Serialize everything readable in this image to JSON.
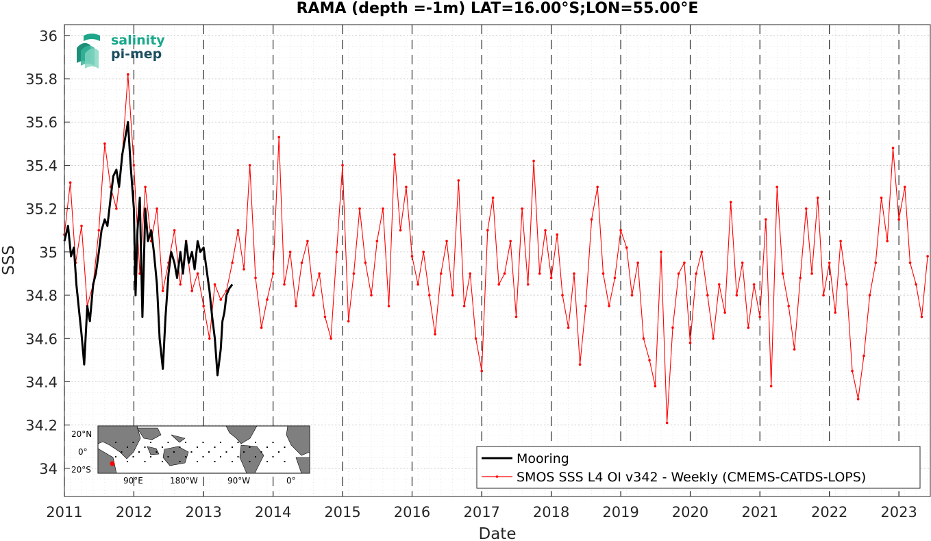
{
  "chart_data": {
    "type": "line",
    "title": "RAMA (depth =-1m) LAT=16.00°S;LON=55.00°E",
    "xlabel": "Date",
    "ylabel": "SSS",
    "xlim": [
      "2011-01-01",
      "2023-06-15"
    ],
    "ylim": [
      33.87,
      36.05
    ],
    "x_ticks": [
      "2011",
      "2012",
      "2013",
      "2014",
      "2015",
      "2016",
      "2017",
      "2018",
      "2019",
      "2020",
      "2021",
      "2022",
      "2023"
    ],
    "y_ticks": [
      "34",
      "34.2",
      "34.4",
      "34.6",
      "34.8",
      "35",
      "35.2",
      "35.4",
      "35.6",
      "35.8",
      "36"
    ],
    "grid": true,
    "year_boundaries_dashed": true,
    "legend_position": "bottom-right",
    "series": [
      {
        "name": "Mooring",
        "color": "#000000",
        "style": "thick-line",
        "x": [
          "2011-01-01",
          "2011-01-20",
          "2011-02-05",
          "2011-02-20",
          "2011-03-05",
          "2011-03-20",
          "2011-04-01",
          "2011-04-15",
          "2011-05-01",
          "2011-05-15",
          "2011-06-01",
          "2011-06-15",
          "2011-07-01",
          "2011-07-15",
          "2011-08-01",
          "2011-08-15",
          "2011-09-01",
          "2011-09-15",
          "2011-10-01",
          "2011-10-15",
          "2011-11-01",
          "2011-11-15",
          "2011-12-01",
          "2011-12-15",
          "2012-01-01",
          "2012-01-10",
          "2012-01-20",
          "2012-02-01",
          "2012-02-15",
          "2012-03-01",
          "2012-03-15",
          "2012-04-01",
          "2012-04-15",
          "2012-05-01",
          "2012-05-15",
          "2012-06-01",
          "2012-06-15",
          "2012-07-01",
          "2012-07-15",
          "2012-08-01",
          "2012-08-15",
          "2012-09-01",
          "2012-09-15",
          "2012-10-01",
          "2012-10-15",
          "2012-11-01",
          "2012-11-15",
          "2012-12-01",
          "2012-12-15",
          "2013-01-01",
          "2013-02-01",
          "2013-02-15",
          "2013-03-01",
          "2013-03-15",
          "2013-04-01",
          "2013-04-10",
          "2013-04-20",
          "2013-05-01",
          "2013-05-15",
          "2013-06-01"
        ],
        "y": [
          35.05,
          35.12,
          34.98,
          35.02,
          34.85,
          34.72,
          34.62,
          34.48,
          34.75,
          34.68,
          34.85,
          34.9,
          35.0,
          35.1,
          35.15,
          35.12,
          35.25,
          35.35,
          35.38,
          35.3,
          35.45,
          35.52,
          35.6,
          35.4,
          35.2,
          34.8,
          35.1,
          35.25,
          34.7,
          35.2,
          35.05,
          35.1,
          35.0,
          34.85,
          34.6,
          34.46,
          34.7,
          34.9,
          35.0,
          34.95,
          34.88,
          35.0,
          34.9,
          35.05,
          34.95,
          35.0,
          34.92,
          35.05,
          35.0,
          35.02,
          34.82,
          34.7,
          34.6,
          34.43,
          34.55,
          34.68,
          34.72,
          34.8,
          34.83,
          34.85
        ]
      },
      {
        "name": "SMOS SSS L4 OI v342 - Weekly (CMEMS-CATDS-LOPS)",
        "color": "#ff0000",
        "style": "line-with-dots",
        "x": [
          "2011-01-01",
          "2011-02-01",
          "2011-03-01",
          "2011-04-01",
          "2011-05-01",
          "2011-06-01",
          "2011-07-01",
          "2011-08-01",
          "2011-09-01",
          "2011-10-01",
          "2011-11-01",
          "2011-12-01",
          "2012-01-01",
          "2012-02-01",
          "2012-03-01",
          "2012-04-01",
          "2012-05-01",
          "2012-06-01",
          "2012-07-01",
          "2012-08-01",
          "2012-09-01",
          "2012-10-01",
          "2012-11-01",
          "2012-12-01",
          "2013-01-01",
          "2013-02-01",
          "2013-03-01",
          "2013-04-01",
          "2013-05-01",
          "2013-06-01",
          "2013-07-01",
          "2013-08-01",
          "2013-09-01",
          "2013-10-01",
          "2013-11-01",
          "2013-12-01",
          "2014-01-01",
          "2014-02-01",
          "2014-03-01",
          "2014-04-01",
          "2014-05-01",
          "2014-06-01",
          "2014-07-01",
          "2014-08-01",
          "2014-09-01",
          "2014-10-01",
          "2014-11-01",
          "2014-12-01",
          "2015-01-01",
          "2015-02-01",
          "2015-03-01",
          "2015-04-01",
          "2015-05-01",
          "2015-06-01",
          "2015-07-01",
          "2015-08-01",
          "2015-09-01",
          "2015-10-01",
          "2015-11-01",
          "2015-12-01",
          "2016-01-01",
          "2016-02-01",
          "2016-03-01",
          "2016-04-01",
          "2016-05-01",
          "2016-06-01",
          "2016-07-01",
          "2016-08-01",
          "2016-09-01",
          "2016-10-01",
          "2016-11-01",
          "2016-12-01",
          "2017-01-01",
          "2017-02-01",
          "2017-03-01",
          "2017-04-01",
          "2017-05-01",
          "2017-06-01",
          "2017-07-01",
          "2017-08-01",
          "2017-09-01",
          "2017-10-01",
          "2017-11-01",
          "2017-12-01",
          "2018-01-01",
          "2018-02-01",
          "2018-03-01",
          "2018-04-01",
          "2018-05-01",
          "2018-06-01",
          "2018-07-01",
          "2018-08-01",
          "2018-09-01",
          "2018-10-01",
          "2018-11-01",
          "2018-12-01",
          "2019-01-01",
          "2019-02-01",
          "2019-03-01",
          "2019-04-01",
          "2019-05-01",
          "2019-06-01",
          "2019-07-01",
          "2019-08-01",
          "2019-09-01",
          "2019-10-01",
          "2019-11-01",
          "2019-12-01",
          "2020-01-01",
          "2020-02-01",
          "2020-03-01",
          "2020-04-01",
          "2020-05-01",
          "2020-06-01",
          "2020-07-01",
          "2020-08-01",
          "2020-09-01",
          "2020-10-01",
          "2020-11-01",
          "2020-12-01",
          "2021-01-01",
          "2021-02-01",
          "2021-03-01",
          "2021-04-01",
          "2021-05-01",
          "2021-06-01",
          "2021-07-01",
          "2021-08-01",
          "2021-09-01",
          "2021-10-01",
          "2021-11-01",
          "2021-12-01",
          "2022-01-01",
          "2022-02-01",
          "2022-03-01",
          "2022-04-01",
          "2022-05-01",
          "2022-06-01",
          "2022-07-01",
          "2022-08-01",
          "2022-09-01",
          "2022-10-01",
          "2022-11-01",
          "2022-12-01",
          "2023-01-01",
          "2023-02-01",
          "2023-03-01",
          "2023-04-01",
          "2023-05-01",
          "2023-06-01"
        ],
        "y": [
          35.08,
          35.32,
          34.95,
          35.12,
          34.75,
          34.85,
          35.1,
          35.5,
          35.3,
          35.2,
          35.45,
          35.82,
          35.4,
          34.9,
          35.3,
          35.05,
          35.2,
          34.82,
          34.95,
          35.1,
          34.85,
          35.05,
          34.82,
          34.9,
          34.75,
          34.6,
          34.85,
          34.78,
          34.82,
          34.95,
          35.1,
          34.92,
          35.4,
          34.88,
          34.65,
          34.78,
          34.9,
          35.53,
          34.85,
          35.0,
          34.75,
          34.95,
          35.05,
          34.8,
          34.9,
          34.7,
          34.6,
          35.0,
          35.4,
          34.68,
          34.9,
          35.2,
          34.95,
          34.8,
          35.05,
          35.2,
          34.75,
          35.45,
          35.1,
          35.3,
          34.98,
          34.85,
          35.0,
          34.8,
          34.62,
          34.9,
          35.05,
          34.8,
          35.33,
          34.75,
          34.9,
          34.6,
          34.45,
          35.1,
          35.25,
          34.85,
          34.9,
          35.05,
          34.7,
          35.2,
          34.85,
          35.42,
          34.9,
          35.1,
          34.88,
          35.08,
          34.8,
          34.65,
          34.9,
          34.48,
          34.75,
          35.15,
          35.3,
          34.9,
          34.75,
          34.88,
          35.1,
          35.02,
          34.8,
          34.95,
          34.6,
          34.5,
          34.38,
          35.0,
          34.21,
          34.65,
          34.9,
          34.95,
          34.58,
          34.9,
          35.0,
          34.8,
          34.6,
          34.85,
          34.72,
          35.23,
          34.8,
          34.95,
          34.65,
          34.85,
          34.7,
          35.15,
          34.38,
          35.3,
          34.9,
          34.75,
          34.55,
          34.88,
          35.2,
          34.9,
          35.25,
          34.8,
          34.95,
          34.72,
          35.05,
          34.85,
          34.45,
          34.32,
          34.52,
          34.8,
          34.95,
          35.25,
          35.05,
          35.48,
          35.15,
          35.3,
          34.95,
          34.85,
          34.7,
          34.98
        ]
      }
    ],
    "inset_map": {
      "lat_labels": [
        "20°N",
        "0°",
        "20°S"
      ],
      "lon_labels": [
        "90°E",
        "180°W",
        "90°W",
        "0°"
      ]
    },
    "logo": {
      "line1": "salinity",
      "line2": "pi-mep"
    }
  }
}
